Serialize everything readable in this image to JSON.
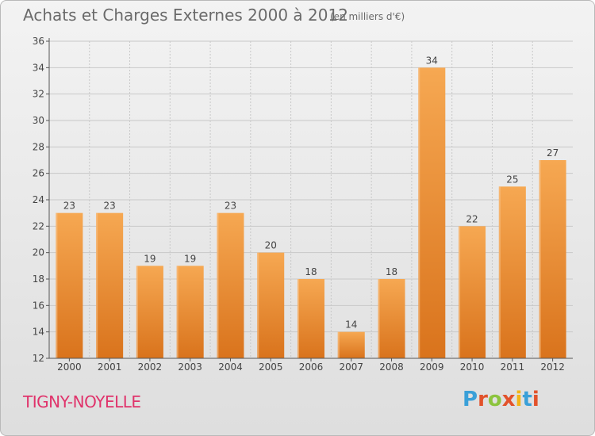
{
  "header": {
    "title": "Achats et Charges Externes 2000 à 2012",
    "subtitle": "(en milliers d'€)"
  },
  "footer": {
    "commune": "TIGNY-NOYELLE",
    "logo_text": "Proxiti",
    "logo_colors": [
      "#3aa0d8",
      "#e2522b",
      "#8cc43e",
      "#e2522b",
      "#f3b417",
      "#3aa0d8",
      "#e2522b"
    ]
  },
  "colors": {
    "bar_top": "#f6a852",
    "bar_bottom": "#d9731c",
    "axis": "#555555",
    "grid": "#c8c8c8",
    "label": "#444444"
  },
  "chart_data": {
    "type": "bar",
    "categories": [
      "2000",
      "2001",
      "2002",
      "2003",
      "2004",
      "2005",
      "2006",
      "2007",
      "2008",
      "2009",
      "2010",
      "2011",
      "2012"
    ],
    "values": [
      23,
      23,
      19,
      19,
      23,
      20,
      18,
      14,
      18,
      34,
      22,
      25,
      27
    ],
    "ylim": [
      12,
      36
    ],
    "yticks": [
      12,
      14,
      16,
      18,
      20,
      22,
      24,
      26,
      28,
      30,
      32,
      34,
      36
    ],
    "grid": true,
    "xlabel": "",
    "ylabel": ""
  }
}
